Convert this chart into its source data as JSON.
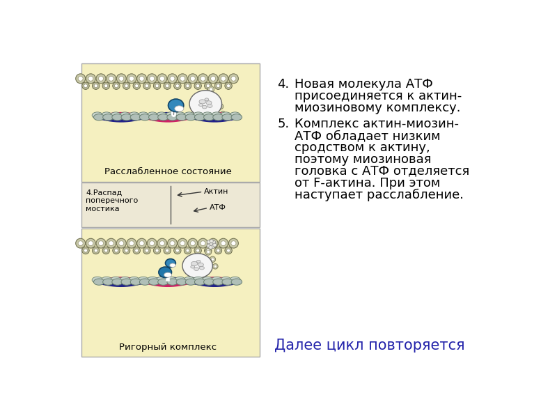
{
  "bg_color": "#ffffff",
  "top_panel_bg": "#f5f0c0",
  "mid_panel_bg": "#ede8d5",
  "bot_panel_bg": "#f5f0c0",
  "border_color": "#aaaaaa",
  "item4_number": "4.",
  "item4_text_line1": "Новая молекула АТФ",
  "item4_text_line2": "присоединяется к актин-",
  "item4_text_line3": "миозиновому комплексу.",
  "item5_number": "5.",
  "item5_text_line1": "Комплекс актин-миозин-",
  "item5_text_line2": "АТФ обладает низким",
  "item5_text_line3": "сродством к актину,",
  "item5_text_line4": "поэтому миозиновая",
  "item5_text_line5": "головка с АТФ отделяется",
  "item5_text_line6": "от F-актина. При этом",
  "item5_text_line7": "наступает расслабление.",
  "footer_text": "Далее цикл повторяется",
  "footer_color": "#2222aa",
  "label_relaxed": "Расслабленное состояние",
  "label_cross": "4.Распад\nпоперечного\nмостика",
  "label_actin": "Актин",
  "label_atf": "АТФ",
  "label_rigor": "Ригорный комплекс",
  "text_color": "#000000",
  "font_size_main": 13,
  "font_size_label": 9,
  "font_size_footer": 15,
  "pink_color": "#cc2266",
  "blue_color": "#222288",
  "actin_fill": "#c0c0a0",
  "actin_edge": "#888866",
  "myosin_head_color": "#3388bb",
  "atp_fill": "#e8e8e0",
  "atp_edge": "#888888"
}
